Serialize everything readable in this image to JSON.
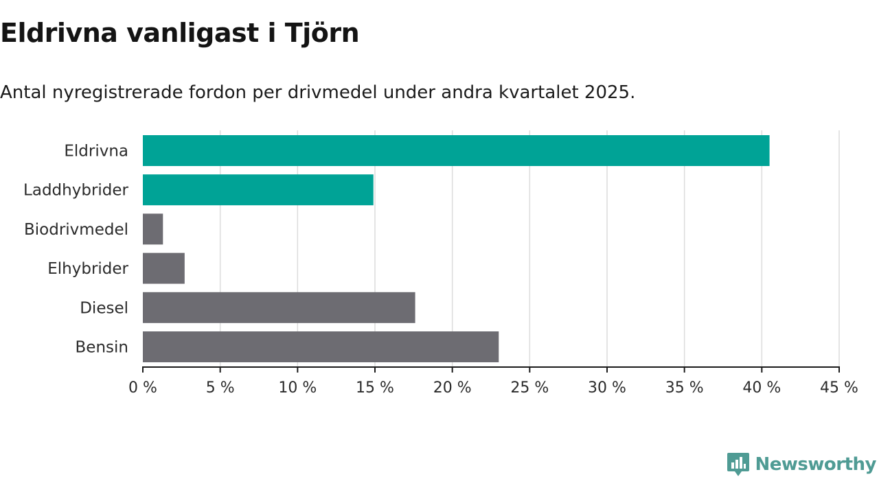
{
  "header": {
    "title": "Eldrivna vanligast i Tjörn",
    "subtitle": "Antal nyregistrerade fordon per drivmedel under andra kvartalet 2025."
  },
  "chart_data": {
    "type": "bar",
    "orientation": "horizontal",
    "title": "Eldrivna vanligast i Tjörn",
    "subtitle": "Antal nyregistrerade fordon per drivmedel under andra kvartalet 2025.",
    "categories": [
      "Eldrivna",
      "Laddhybrider",
      "Biodrivmedel",
      "Elhybrider",
      "Diesel",
      "Bensin"
    ],
    "values": [
      40.5,
      14.9,
      1.3,
      2.7,
      17.6,
      23.0
    ],
    "colors": [
      "#00a396",
      "#00a396",
      "#6d6c72",
      "#6d6c72",
      "#6d6c72",
      "#6d6c72"
    ],
    "unit": "%",
    "xlim": [
      0,
      45
    ],
    "ticks": [
      "0 %",
      "5 %",
      "10 %",
      "15 %",
      "20 %",
      "25 %",
      "30 %",
      "35 %",
      "40 %",
      "45 %"
    ],
    "tick_values": [
      0,
      5,
      10,
      15,
      20,
      25,
      30,
      35,
      40,
      45
    ],
    "grid": true,
    "xlabel": "",
    "ylabel": ""
  },
  "branding": {
    "name": "Newsworthy",
    "logo_icon": "newsworthy-logo-icon",
    "color": "#4f9b94"
  }
}
